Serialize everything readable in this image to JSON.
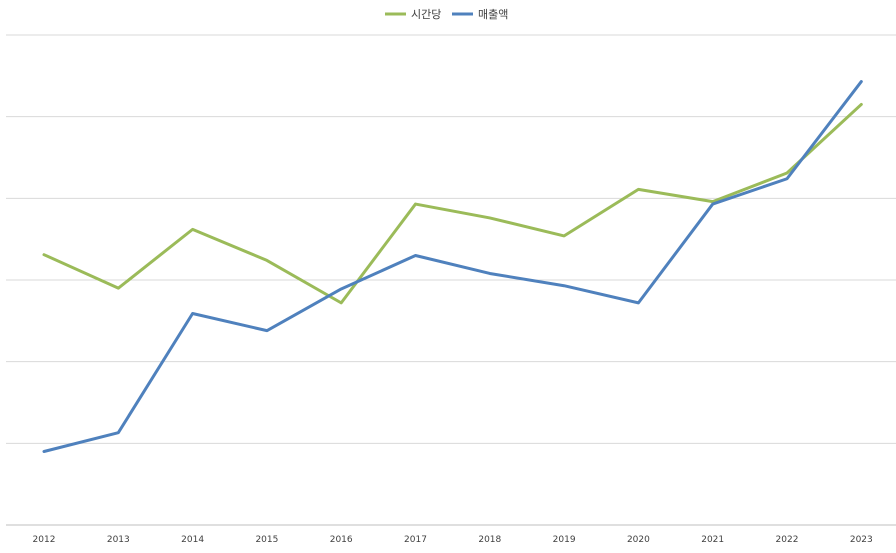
{
  "chart_data": {
    "type": "line",
    "title": "",
    "xlabel": "",
    "ylabel": "",
    "categories": [
      "2012",
      "2013",
      "2014",
      "2015",
      "2016",
      "2017",
      "2018",
      "2019",
      "2020",
      "2021",
      "2022",
      "2023"
    ],
    "ylim": [
      0,
      6
    ],
    "grid": true,
    "legend_position": "top",
    "series": [
      {
        "name": "시간당",
        "color": "#9BBB59",
        "values": [
          3.31,
          2.9,
          3.62,
          3.24,
          2.72,
          3.93,
          3.76,
          3.54,
          4.11,
          3.96,
          4.31,
          5.15
        ]
      },
      {
        "name": "매출액",
        "color": "#4F81BD",
        "values": [
          0.9,
          1.13,
          2.59,
          2.38,
          2.89,
          3.3,
          3.08,
          2.93,
          2.72,
          3.93,
          4.24,
          5.43
        ]
      }
    ]
  }
}
